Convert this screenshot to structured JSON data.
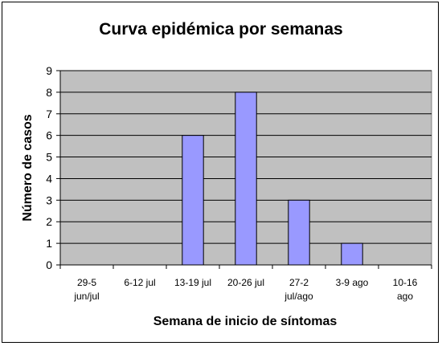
{
  "chart_data": {
    "type": "bar",
    "title": "Curva epidémica por semanas",
    "xlabel": "Semana de inicio de síntomas",
    "ylabel": "Número de casos",
    "categories": [
      [
        "29-5",
        "jun/jul"
      ],
      [
        "6-12 jul"
      ],
      [
        "13-19 jul"
      ],
      [
        "20-26 jul"
      ],
      [
        "27-2",
        "jul/ago"
      ],
      [
        "3-9 ago"
      ],
      [
        "10-16",
        "ago"
      ]
    ],
    "values": [
      0,
      0,
      6,
      8,
      3,
      1,
      0
    ],
    "ylim": [
      0,
      9
    ],
    "yticks": [
      "0",
      "1",
      "2",
      "3",
      "4",
      "5",
      "6",
      "7",
      "8",
      "9"
    ],
    "grid": true,
    "legend": "none",
    "colors": {
      "plot_background": "#C0C0C0",
      "bar_fill": "#9999FF",
      "bar_stroke": "#000000",
      "gridline": "#000000"
    }
  }
}
